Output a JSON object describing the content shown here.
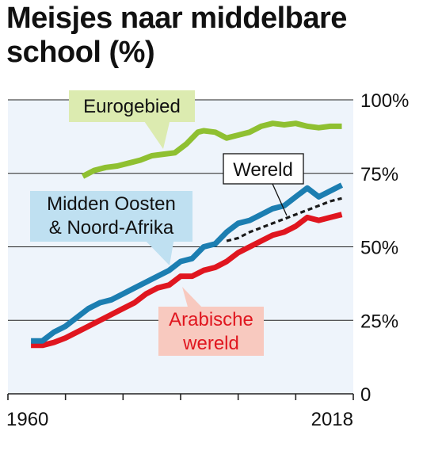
{
  "title": "Meisjes naar middelbare school (%)",
  "colors": {
    "plot_background": "#eef4fb",
    "grid": "#222222",
    "eurogebied": "#8fc031",
    "midden_oosten": "#1c7eb1",
    "arabische_wereld": "#e0161f",
    "wereld": "#1a1a1a",
    "label_eurogebied_bg": "#dcebb0",
    "label_midden_oosten_bg": "#bfe0f1",
    "label_arabische_bg": "#f8c9bf",
    "label_wereld_bg": "#ffffff"
  },
  "chart_data": {
    "type": "line",
    "x_range": [
      1960,
      2020
    ],
    "x_tick_labels": [
      "1960",
      "",
      "",
      "",
      "",
      "",
      "2018"
    ],
    "ylim": [
      0,
      100
    ],
    "y_tick_labels": [
      "0",
      "25%",
      "50%",
      "75%",
      "100%"
    ],
    "y_ticks": [
      0,
      25,
      50,
      75,
      100
    ],
    "grid": "horizontal",
    "series": [
      {
        "key": "eurogebied",
        "name": "Eurogebied",
        "style": "solid",
        "x": [
          1973,
          1975,
          1977,
          1979,
          1981,
          1983,
          1985,
          1987,
          1989,
          1991,
          1993,
          1994,
          1996,
          1998,
          2000,
          2002,
          2004,
          2006,
          2008,
          2010,
          2012,
          2014,
          2016,
          2018
        ],
        "y": [
          74,
          76,
          77,
          77.5,
          78.5,
          79.5,
          81,
          81.5,
          82,
          85,
          89,
          89.5,
          89,
          87,
          88,
          89,
          91,
          92,
          91.5,
          92,
          91,
          90.5,
          91,
          91
        ]
      },
      {
        "key": "midden_oosten",
        "name": "Midden Oosten & Noord-Afrika",
        "style": "solid",
        "x": [
          1964,
          1966,
          1968,
          1970,
          1972,
          1974,
          1976,
          1978,
          1980,
          1982,
          1984,
          1986,
          1988,
          1990,
          1992,
          1994,
          1996,
          1998,
          2000,
          2002,
          2004,
          2006,
          2008,
          2010,
          2012,
          2014,
          2016,
          2018
        ],
        "y": [
          18,
          18,
          21,
          23,
          26,
          29,
          31,
          32,
          34,
          36,
          38,
          40,
          42,
          45,
          46,
          50,
          51,
          55,
          58,
          59,
          61,
          63,
          64,
          67,
          70,
          67,
          69,
          71
        ]
      },
      {
        "key": "arabische_wereld",
        "name": "Arabische wereld",
        "style": "solid",
        "x": [
          1964,
          1966,
          1968,
          1970,
          1972,
          1974,
          1976,
          1978,
          1980,
          1982,
          1984,
          1986,
          1988,
          1990,
          1992,
          1994,
          1996,
          1998,
          2000,
          2002,
          2004,
          2006,
          2008,
          2010,
          2012,
          2014,
          2016,
          2018
        ],
        "y": [
          16.5,
          16.5,
          17.5,
          19,
          21,
          23,
          25,
          27,
          29,
          31,
          34,
          36,
          37,
          40,
          40,
          42,
          43,
          45,
          48,
          50,
          52,
          54,
          55,
          57,
          60,
          59,
          60,
          61
        ]
      },
      {
        "key": "wereld",
        "name": "Wereld",
        "style": "dashed",
        "x": [
          1998,
          2000,
          2002,
          2004,
          2006,
          2008,
          2010,
          2012,
          2014,
          2016,
          2018
        ],
        "y": [
          52,
          53,
          55,
          56.5,
          58,
          59.5,
          61,
          62.5,
          64,
          65.5,
          66.5
        ]
      }
    ]
  }
}
